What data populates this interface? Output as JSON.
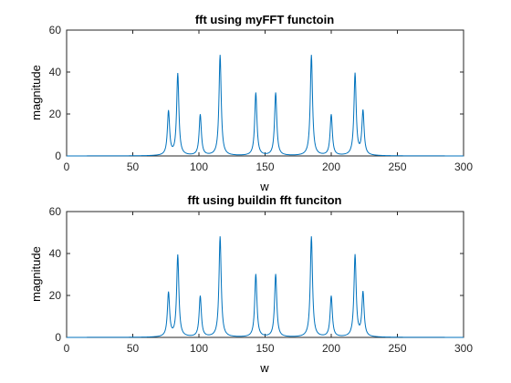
{
  "chart_data": [
    {
      "type": "line",
      "title": "fft using myFFT functoin",
      "xlabel": "w",
      "ylabel": "magnitude",
      "xlim": [
        0,
        300
      ],
      "ylim": [
        0,
        60
      ],
      "xticks": [
        0,
        50,
        100,
        150,
        200,
        250,
        300
      ],
      "yticks": [
        0,
        20,
        40,
        60
      ],
      "grid": false,
      "line_color": "#0072BD",
      "series": [
        {
          "peaks": [
            [
              77,
              21
            ],
            [
              84,
              39
            ],
            [
              101,
              19.5
            ],
            [
              116,
              48
            ],
            [
              143,
              30
            ],
            [
              158,
              30
            ],
            [
              185,
              48
            ],
            [
              200,
              19.5
            ],
            [
              218,
              39
            ],
            [
              224,
              21
            ]
          ],
          "x": [
            0,
            50,
            70,
            74,
            77,
            80,
            82,
            84,
            87,
            92,
            97,
            101,
            105,
            110,
            114,
            116,
            118,
            124,
            134,
            140,
            143,
            146,
            150,
            154,
            156,
            158,
            161,
            166,
            176,
            182,
            185,
            187,
            191,
            196,
            200,
            204,
            209,
            214,
            218,
            221,
            224,
            227,
            232,
            245,
            260,
            300
          ],
          "y": [
            0.3,
            0.8,
            2.2,
            5,
            21,
            7,
            7.5,
            39,
            9,
            4,
            5,
            19.5,
            5,
            6,
            17,
            48,
            14,
            6,
            5,
            8,
            30,
            8,
            6,
            8,
            10,
            30,
            8,
            5,
            6,
            14,
            48,
            17,
            6,
            5,
            19.5,
            5,
            4,
            9,
            39,
            7.5,
            21,
            5,
            2.2,
            0.9,
            0.5,
            0.2
          ]
        }
      ]
    },
    {
      "type": "line",
      "title": "fft using buildin fft funciton",
      "xlabel": "w",
      "ylabel": "magnitude",
      "xlim": [
        0,
        300
      ],
      "ylim": [
        0,
        60
      ],
      "xticks": [
        0,
        50,
        100,
        150,
        200,
        250,
        300
      ],
      "yticks": [
        0,
        20,
        40,
        60
      ],
      "grid": false,
      "line_color": "#0072BD",
      "series": [
        {
          "peaks": [
            [
              77,
              21
            ],
            [
              84,
              39
            ],
            [
              101,
              19.5
            ],
            [
              116,
              48
            ],
            [
              143,
              30
            ],
            [
              158,
              30
            ],
            [
              185,
              48
            ],
            [
              200,
              19.5
            ],
            [
              218,
              39
            ],
            [
              224,
              21
            ]
          ],
          "x": [
            0,
            50,
            70,
            74,
            77,
            80,
            82,
            84,
            87,
            92,
            97,
            101,
            105,
            110,
            114,
            116,
            118,
            124,
            134,
            140,
            143,
            146,
            150,
            154,
            156,
            158,
            161,
            166,
            176,
            182,
            185,
            187,
            191,
            196,
            200,
            204,
            209,
            214,
            218,
            221,
            224,
            227,
            232,
            245,
            260,
            300
          ],
          "y": [
            0.3,
            0.8,
            2.2,
            5,
            21,
            7,
            7.5,
            39,
            9,
            4,
            5,
            19.5,
            5,
            6,
            17,
            48,
            14,
            6,
            5,
            8,
            30,
            8,
            6,
            8,
            10,
            30,
            8,
            5,
            6,
            14,
            48,
            17,
            6,
            5,
            19.5,
            5,
            4,
            9,
            39,
            7.5,
            21,
            5,
            2.2,
            0.9,
            0.5,
            0.2
          ]
        }
      ]
    }
  ]
}
